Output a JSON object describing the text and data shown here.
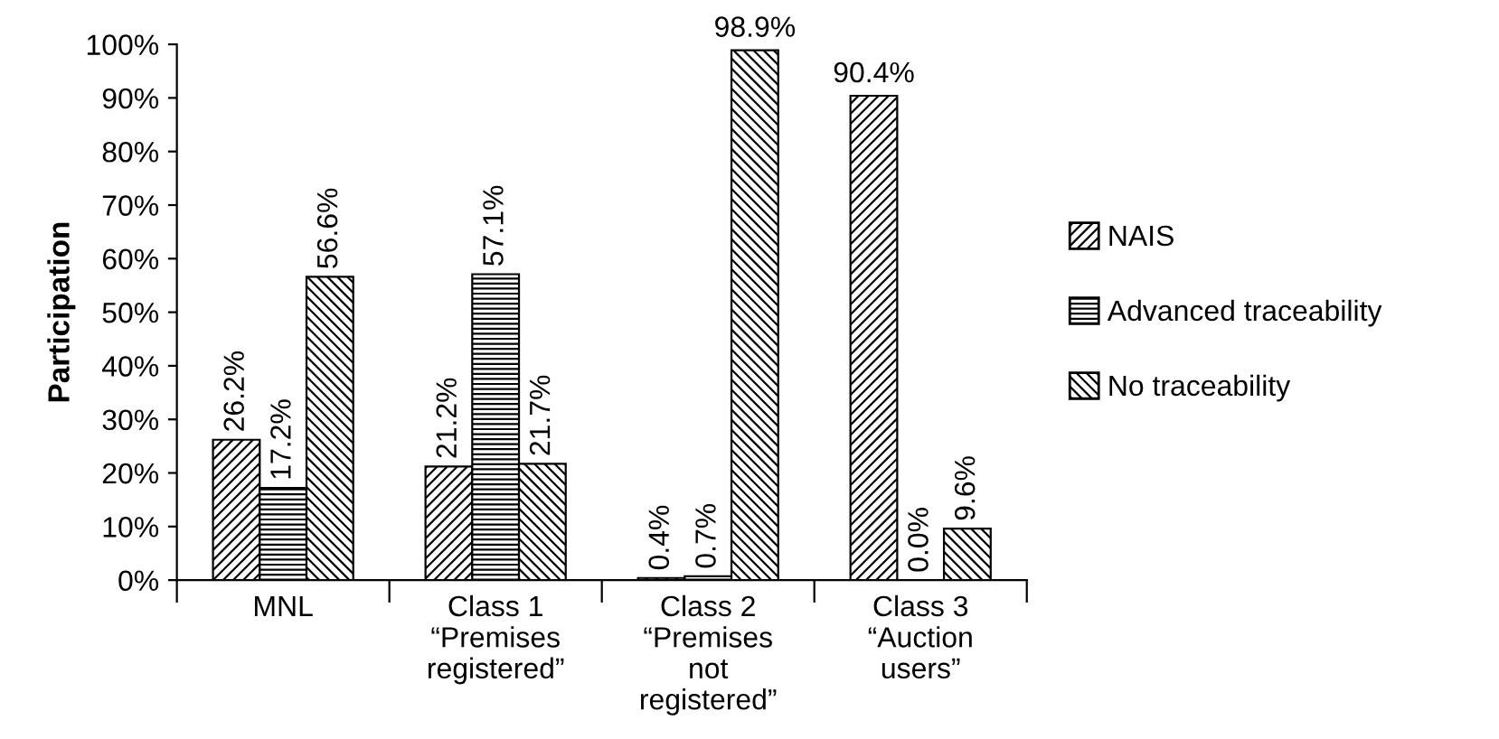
{
  "chart_data": {
    "type": "bar",
    "ylabel": "Participation",
    "categories": [
      "MNL",
      "Class 1\n“Premises\nregistered”",
      "Class 2\n“Premises\nnot\nregistered”",
      "Class 3\n“Auction\nusers”"
    ],
    "series": [
      {
        "name": "NAIS",
        "color": "#000000",
        "values": [
          26.2,
          21.2,
          0.4,
          90.4
        ],
        "value_labels": [
          "26.2%",
          "21.2%",
          "0.4%",
          "90.4%"
        ]
      },
      {
        "name": "Advanced traceability",
        "color": "#000000",
        "values": [
          17.2,
          57.1,
          0.7,
          0.0
        ],
        "value_labels": [
          "17.2%",
          "57.1%",
          "0.7%",
          "0.0%"
        ]
      },
      {
        "name": "No traceability",
        "color": "#000000",
        "values": [
          56.6,
          21.7,
          98.9,
          9.6
        ],
        "value_labels": [
          "56.6%",
          "21.7%",
          "98.9%",
          "9.6%"
        ]
      }
    ],
    "ylim": [
      0,
      100
    ],
    "yticks": [
      {
        "value": 0,
        "label": "0%"
      },
      {
        "value": 10,
        "label": "10%"
      },
      {
        "value": 20,
        "label": "20%"
      },
      {
        "value": 30,
        "label": "30%"
      },
      {
        "value": 40,
        "label": "40%"
      },
      {
        "value": 50,
        "label": "50%"
      },
      {
        "value": 60,
        "label": "60%"
      },
      {
        "value": 70,
        "label": "70%"
      },
      {
        "value": 80,
        "label": "80%"
      },
      {
        "value": 90,
        "label": "90%"
      },
      {
        "value": 100,
        "label": "100%"
      }
    ],
    "grid": false,
    "legend": "right"
  }
}
